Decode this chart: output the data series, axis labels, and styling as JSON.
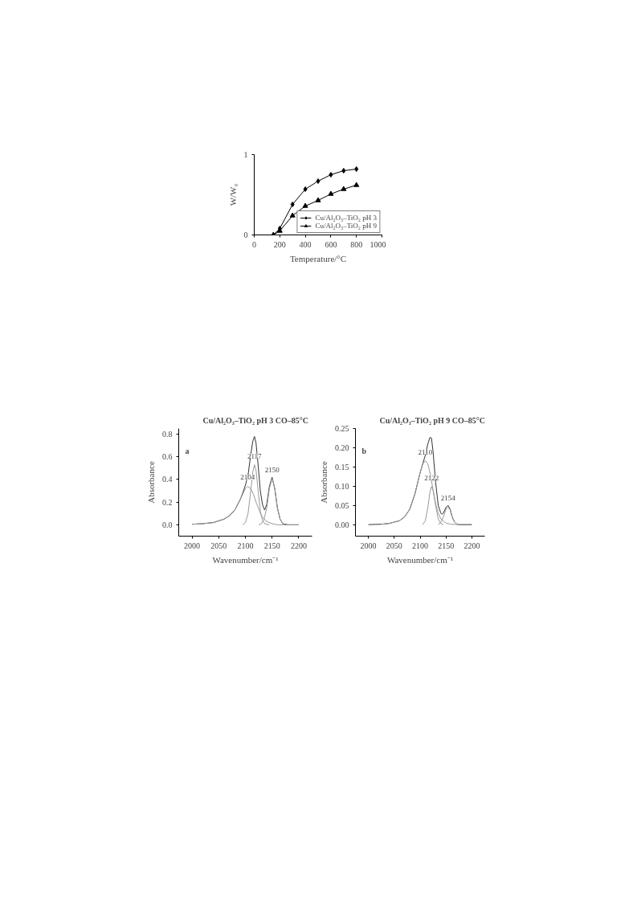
{
  "chart_data": [
    {
      "type": "line",
      "xlabel": "Temperature/°C",
      "ylabel": "W/W₀",
      "xlim": [
        0,
        1000
      ],
      "xticks": [
        0,
        200,
        400,
        600,
        800,
        1000
      ],
      "ylim": [
        0,
        1
      ],
      "yticks": [
        0,
        1
      ],
      "grid": false,
      "legend": "bottom right",
      "series": [
        {
          "name": "Cu/Al₂O₃–TiO₂ pH 3",
          "color": "#000000",
          "marker": "diamond",
          "x": [
            150,
            200,
            300,
            400,
            500,
            600,
            700,
            800
          ],
          "values": [
            0,
            0.08,
            0.38,
            0.57,
            0.67,
            0.75,
            0.8,
            0.82
          ]
        },
        {
          "name": "Cu/Al₂O₃–TiO₂ pH 9",
          "color": "#000000",
          "marker": "triangle",
          "x": [
            150,
            200,
            300,
            400,
            500,
            600,
            700,
            800
          ],
          "values": [
            0,
            0.05,
            0.24,
            0.36,
            0.43,
            0.51,
            0.57,
            0.62
          ]
        }
      ]
    },
    {
      "type": "line",
      "title": "Cu/Al₂O₃–TiO₂ pH 3 CO–85°C",
      "xlabel": "Wavenumber/cm⁻¹",
      "ylabel": "Absorbance",
      "xlim": [
        1975,
        2225
      ],
      "xticks": [
        2000,
        2050,
        2100,
        2150,
        2200
      ],
      "ylim": [
        -0.1,
        0.85
      ],
      "yticks": [
        {
          "value": 0,
          "label": "0.0"
        },
        0.2,
        0.4,
        0.6,
        0.8
      ],
      "grid": false,
      "annotations": [
        "a",
        {
          "text": "2104",
          "x": 2104,
          "y": 0.34
        },
        {
          "text": "2117",
          "x": 2117,
          "y": 0.53
        },
        {
          "text": "2150",
          "x": 2150,
          "y": 0.41
        }
      ],
      "series": [
        {
          "color": "#333333",
          "x": [
            2000,
            2020,
            2040,
            2060,
            2070,
            2080,
            2090,
            2095,
            2100,
            2105,
            2110,
            2114,
            2117,
            2120,
            2124,
            2128,
            2132,
            2136,
            2140,
            2145,
            2150,
            2155,
            2160,
            2165,
            2170,
            2180,
            2200
          ],
          "values": [
            0.005,
            0.01,
            0.02,
            0.05,
            0.08,
            0.13,
            0.22,
            0.28,
            0.35,
            0.44,
            0.62,
            0.74,
            0.78,
            0.72,
            0.52,
            0.3,
            0.18,
            0.13,
            0.18,
            0.34,
            0.42,
            0.32,
            0.15,
            0.05,
            0.01,
            0,
            0
          ]
        },
        {
          "color": "#999999",
          "x": [
            2000,
            2020,
            2040,
            2060,
            2070,
            2080,
            2090,
            2095,
            2100,
            2104,
            2110,
            2115,
            2120,
            2125,
            2130,
            2135,
            2140,
            2150,
            2160,
            2200
          ],
          "values": [
            0.005,
            0.01,
            0.02,
            0.05,
            0.08,
            0.13,
            0.22,
            0.27,
            0.32,
            0.34,
            0.32,
            0.27,
            0.2,
            0.14,
            0.08,
            0.05,
            0.03,
            0.01,
            0,
            0
          ]
        },
        {
          "color": "#999999",
          "x": [
            2095,
            2100,
            2105,
            2110,
            2114,
            2117,
            2120,
            2124,
            2128,
            2132,
            2136,
            2145
          ],
          "values": [
            0,
            0.02,
            0.1,
            0.3,
            0.47,
            0.53,
            0.48,
            0.3,
            0.12,
            0.04,
            0.01,
            0
          ]
        },
        {
          "color": "#999999",
          "x": [
            2125,
            2130,
            2135,
            2140,
            2145,
            2150,
            2155,
            2160,
            2165,
            2170,
            2175,
            2200
          ],
          "values": [
            0,
            0.01,
            0.05,
            0.15,
            0.32,
            0.41,
            0.32,
            0.15,
            0.05,
            0.01,
            0,
            0
          ]
        }
      ]
    },
    {
      "type": "line",
      "title": "Cu/Al₂O₃–TiO₂ pH 9 CO–85°C",
      "xlabel": "Wavenumber/cm⁻¹",
      "ylabel": "Absorbance",
      "xlim": [
        1975,
        2225
      ],
      "xticks": [
        2000,
        2050,
        2100,
        2150,
        2200
      ],
      "ylim": [
        -0.03,
        0.25
      ],
      "yticks": [
        {
          "value": 0,
          "label": "0.00"
        },
        {
          "value": 0.05,
          "label": "0.05"
        },
        {
          "value": 0.1,
          "label": "0.10"
        },
        {
          "value": 0.15,
          "label": "0.15"
        },
        {
          "value": 0.2,
          "label": "0.20"
        },
        {
          "value": 0.25,
          "label": "0.25"
        }
      ],
      "grid": false,
      "annotations": [
        "b",
        {
          "text": "2110",
          "x": 2110,
          "y": 0.166
        },
        {
          "text": "2122",
          "x": 2122,
          "y": 0.099
        },
        {
          "text": "2154",
          "x": 2154,
          "y": 0.046
        }
      ],
      "series": [
        {
          "color": "#333333",
          "x": [
            2000,
            2025,
            2040,
            2060,
            2070,
            2080,
            2090,
            2100,
            2105,
            2110,
            2115,
            2119,
            2122,
            2125,
            2130,
            2135,
            2140,
            2142,
            2145,
            2150,
            2154,
            2158,
            2162,
            2166,
            2170,
            2175,
            2200
          ],
          "values": [
            0,
            0.001,
            0.003,
            0.01,
            0.02,
            0.04,
            0.08,
            0.135,
            0.158,
            0.18,
            0.21,
            0.227,
            0.225,
            0.19,
            0.11,
            0.05,
            0.03,
            0.027,
            0.03,
            0.045,
            0.05,
            0.04,
            0.02,
            0.008,
            0.002,
            0,
            0
          ]
        },
        {
          "color": "#999999",
          "x": [
            2025,
            2040,
            2060,
            2070,
            2080,
            2090,
            2100,
            2105,
            2110,
            2115,
            2120,
            2125,
            2130,
            2135,
            2140,
            2150,
            2160,
            2175
          ],
          "values": [
            0.001,
            0.003,
            0.01,
            0.02,
            0.04,
            0.08,
            0.135,
            0.158,
            0.166,
            0.158,
            0.13,
            0.09,
            0.055,
            0.03,
            0.015,
            0.004,
            0.001,
            0
          ]
        },
        {
          "color": "#999999",
          "x": [
            2105,
            2110,
            2115,
            2119,
            2122,
            2125,
            2130,
            2135,
            2140,
            2145
          ],
          "values": [
            0,
            0.01,
            0.045,
            0.085,
            0.099,
            0.09,
            0.05,
            0.015,
            0.003,
            0
          ]
        },
        {
          "color": "#999999",
          "x": [
            2135,
            2140,
            2145,
            2150,
            2154,
            2158,
            2162,
            2166,
            2170,
            2175
          ],
          "values": [
            0,
            0.006,
            0.02,
            0.04,
            0.046,
            0.038,
            0.02,
            0.008,
            0.002,
            0
          ]
        }
      ]
    }
  ]
}
